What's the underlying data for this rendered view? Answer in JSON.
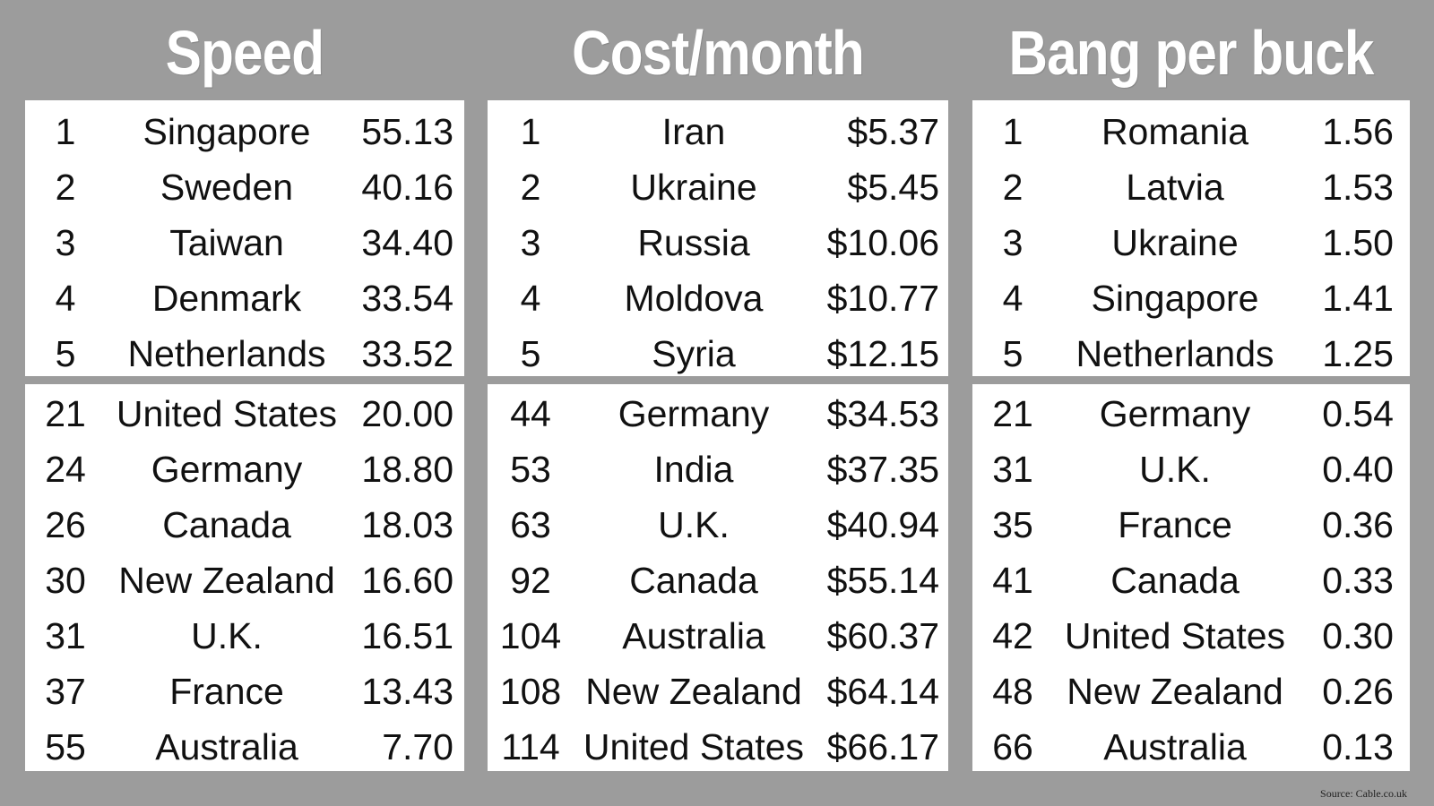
{
  "chart_data": [
    {
      "type": "table",
      "title": "Speed",
      "columns": [
        "rank",
        "country",
        "value"
      ],
      "top": [
        {
          "rank": "1",
          "country": "Singapore",
          "value": "55.13"
        },
        {
          "rank": "2",
          "country": "Sweden",
          "value": "40.16"
        },
        {
          "rank": "3",
          "country": "Taiwan",
          "value": "34.40"
        },
        {
          "rank": "4",
          "country": "Denmark",
          "value": "33.54"
        },
        {
          "rank": "5",
          "country": "Netherlands",
          "value": "33.52"
        }
      ],
      "bottom": [
        {
          "rank": "21",
          "country": "United States",
          "value": "20.00"
        },
        {
          "rank": "24",
          "country": "Germany",
          "value": "18.80"
        },
        {
          "rank": "26",
          "country": "Canada",
          "value": "18.03"
        },
        {
          "rank": "30",
          "country": "New Zealand",
          "value": "16.60"
        },
        {
          "rank": "31",
          "country": "U.K.",
          "value": "16.51"
        },
        {
          "rank": "37",
          "country": "France",
          "value": "13.43"
        },
        {
          "rank": "55",
          "country": "Australia",
          "value": "7.70"
        }
      ]
    },
    {
      "type": "table",
      "title": "Cost/month",
      "columns": [
        "rank",
        "country",
        "value"
      ],
      "top": [
        {
          "rank": "1",
          "country": "Iran",
          "value": "$5.37"
        },
        {
          "rank": "2",
          "country": "Ukraine",
          "value": "$5.45"
        },
        {
          "rank": "3",
          "country": "Russia",
          "value": "$10.06"
        },
        {
          "rank": "4",
          "country": "Moldova",
          "value": "$10.77"
        },
        {
          "rank": "5",
          "country": "Syria",
          "value": "$12.15"
        }
      ],
      "bottom": [
        {
          "rank": "44",
          "country": "Germany",
          "value": "$34.53"
        },
        {
          "rank": "53",
          "country": "India",
          "value": "$37.35"
        },
        {
          "rank": "63",
          "country": "U.K.",
          "value": "$40.94"
        },
        {
          "rank": "92",
          "country": "Canada",
          "value": "$55.14"
        },
        {
          "rank": "104",
          "country": "Australia",
          "value": "$60.37"
        },
        {
          "rank": "108",
          "country": "New Zealand",
          "value": "$64.14"
        },
        {
          "rank": "114",
          "country": "United States",
          "value": "$66.17"
        }
      ]
    },
    {
      "type": "table",
      "title": "Bang per buck",
      "columns": [
        "rank",
        "country",
        "value"
      ],
      "top": [
        {
          "rank": "1",
          "country": "Romania",
          "value": "1.56"
        },
        {
          "rank": "2",
          "country": "Latvia",
          "value": "1.53"
        },
        {
          "rank": "3",
          "country": "Ukraine",
          "value": "1.50"
        },
        {
          "rank": "4",
          "country": "Singapore",
          "value": "1.41"
        },
        {
          "rank": "5",
          "country": "Netherlands",
          "value": "1.25"
        }
      ],
      "bottom": [
        {
          "rank": "21",
          "country": "Germany",
          "value": "0.54"
        },
        {
          "rank": "31",
          "country": "U.K.",
          "value": "0.40"
        },
        {
          "rank": "35",
          "country": "France",
          "value": "0.36"
        },
        {
          "rank": "41",
          "country": "Canada",
          "value": "0.33"
        },
        {
          "rank": "42",
          "country": "United States",
          "value": "0.30"
        },
        {
          "rank": "48",
          "country": "New Zealand",
          "value": "0.26"
        },
        {
          "rank": "66",
          "country": "Australia",
          "value": "0.13"
        }
      ]
    }
  ],
  "source": "Source: Cable.co.uk",
  "colors": {
    "background": "#9c9c9c",
    "panel": "#ffffff",
    "title": "#ffffff",
    "text": "#111111"
  }
}
